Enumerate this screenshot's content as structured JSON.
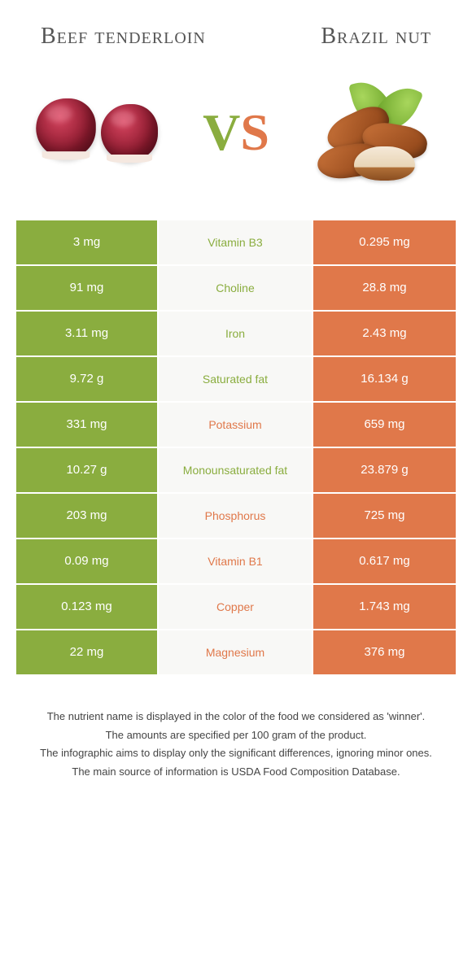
{
  "colors": {
    "left": "#8aad3f",
    "right": "#e0784a",
    "mid_bg": "#f8f8f6"
  },
  "header": {
    "left_title": "Beef tenderloin",
    "right_title": "Brazil nut",
    "vs_v": "V",
    "vs_s": "S"
  },
  "rows": [
    {
      "left": "3 mg",
      "label": "Vitamin B3",
      "right": "0.295 mg",
      "winner": "left"
    },
    {
      "left": "91 mg",
      "label": "Choline",
      "right": "28.8 mg",
      "winner": "left"
    },
    {
      "left": "3.11 mg",
      "label": "Iron",
      "right": "2.43 mg",
      "winner": "left"
    },
    {
      "left": "9.72 g",
      "label": "Saturated fat",
      "right": "16.134 g",
      "winner": "left"
    },
    {
      "left": "331 mg",
      "label": "Potassium",
      "right": "659 mg",
      "winner": "right"
    },
    {
      "left": "10.27 g",
      "label": "Monounsaturated fat",
      "right": "23.879 g",
      "winner": "left"
    },
    {
      "left": "203 mg",
      "label": "Phosphorus",
      "right": "725 mg",
      "winner": "right"
    },
    {
      "left": "0.09 mg",
      "label": "Vitamin B1",
      "right": "0.617 mg",
      "winner": "right"
    },
    {
      "left": "0.123 mg",
      "label": "Copper",
      "right": "1.743 mg",
      "winner": "right"
    },
    {
      "left": "22 mg",
      "label": "Magnesium",
      "right": "376 mg",
      "winner": "right"
    }
  ],
  "footer": {
    "line1": "The nutrient name is displayed in the color of the food we considered as 'winner'.",
    "line2": "The amounts are specified per 100 gram of the product.",
    "line3": "The infographic aims to display only the significant differences, ignoring minor ones.",
    "line4": "The main source of information is USDA Food Composition Database."
  }
}
